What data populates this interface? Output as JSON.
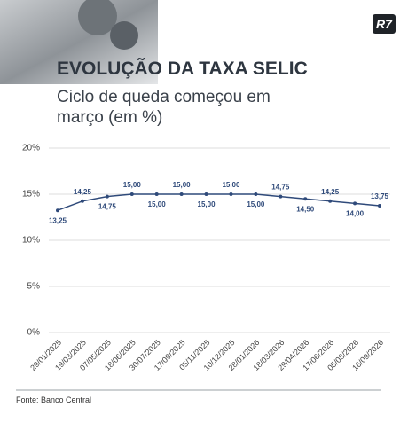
{
  "logo": "R7",
  "chart_data": {
    "type": "line",
    "title": "EVOLUÇÃO DA TAXA SELIC",
    "subtitle": "Ciclo de queda começou em março (em %)",
    "source": "Fonte: Banco Central",
    "categories": [
      "29/01/2025",
      "19/03/2025",
      "07/05/2025",
      "18/06/2025",
      "30/07/2025",
      "17/09/2025",
      "05/11/2025",
      "10/12/2025",
      "28/01/2026",
      "18/03/2026",
      "29/04/2026",
      "17/06/2026",
      "05/08/2026",
      "16/09/2026"
    ],
    "values": [
      13.25,
      14.25,
      14.75,
      15.0,
      15.0,
      15.0,
      15.0,
      15.0,
      15.0,
      14.75,
      14.5,
      14.25,
      14.0,
      13.75
    ],
    "value_labels": [
      "13,25",
      "14,25",
      "14,75",
      "15,00",
      "15,00",
      "15,00",
      "15,00",
      "15,00",
      "15,00",
      "14,75",
      "14,50",
      "14,25",
      "14,00",
      "13,75"
    ],
    "color": "#2f4a7a",
    "ylim": [
      0,
      20
    ],
    "yticks": [
      {
        "value": 0,
        "label": "0%"
      },
      {
        "value": 5,
        "label": "5%"
      },
      {
        "value": 10,
        "label": "10%"
      },
      {
        "value": 15,
        "label": "15%"
      },
      {
        "value": 20,
        "label": "20%"
      }
    ],
    "grid": true
  }
}
